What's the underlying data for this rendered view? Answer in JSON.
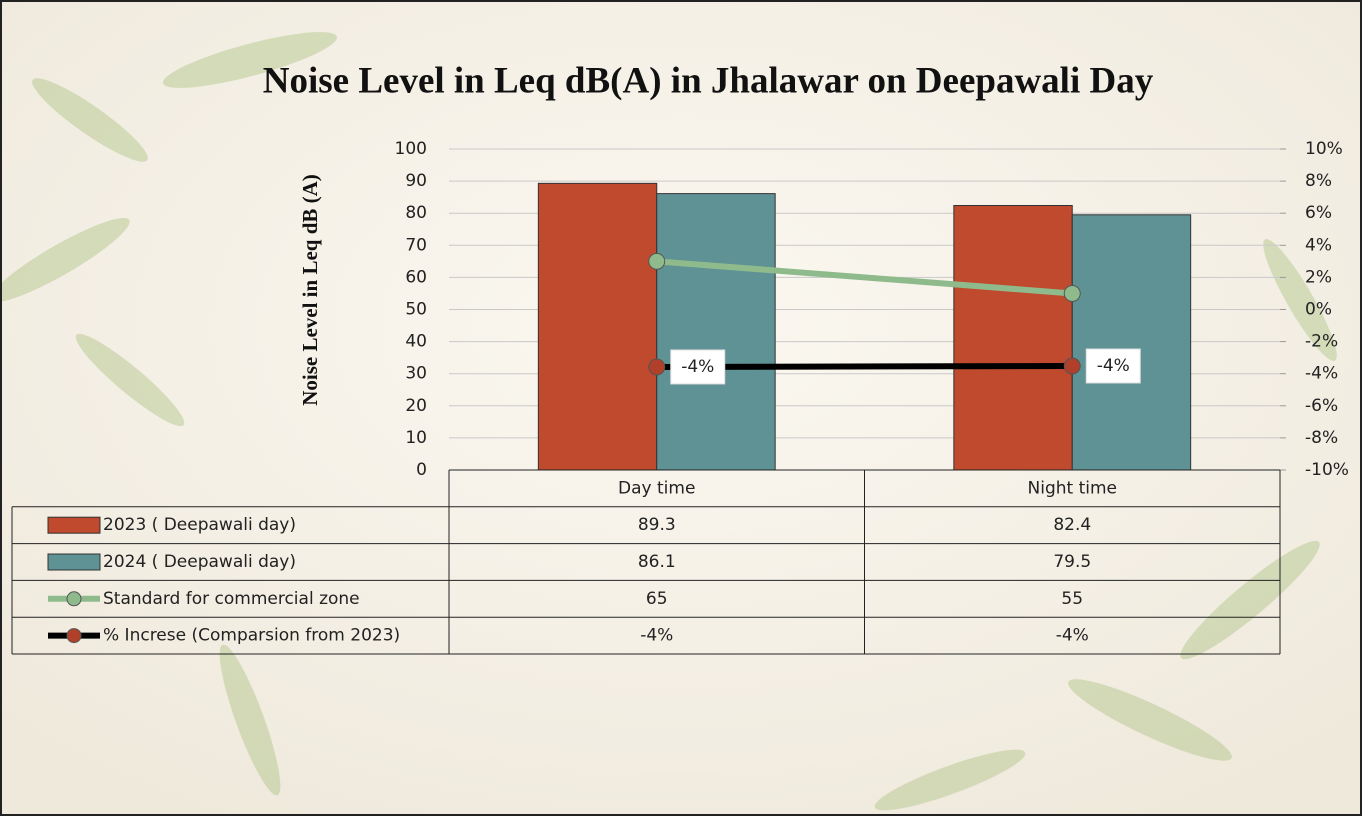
{
  "chart_data": {
    "type": "bar",
    "title": "Noise Level in Leq dB(A) in Jhalawar on Deepawali Day",
    "y_label": "Noise Level in Leq dB (A)",
    "categories": [
      "Day time",
      "Night time"
    ],
    "series": [
      {
        "name": "2023 ( Deepawali day)",
        "type": "bar",
        "color": "#bf4a2e",
        "values": [
          89.3,
          82.4
        ]
      },
      {
        "name": "2024 ( Deepawali day)",
        "type": "bar",
        "color": "#5e9294",
        "values": [
          86.1,
          79.5
        ]
      },
      {
        "name": "Standard for commercial zone",
        "type": "line",
        "color": "#8fbb8c",
        "values": [
          65,
          55
        ]
      },
      {
        "name": "% Increse (Comparsion from 2023)",
        "type": "line",
        "axis": "y2",
        "color": "#000000",
        "marker_color": "#b0402a",
        "values": [
          -3.58,
          -3.52
        ],
        "value_labels": [
          "-4%",
          "-4%"
        ]
      }
    ],
    "ylim": [
      0,
      100
    ],
    "yticks": [
      0,
      10,
      20,
      30,
      40,
      50,
      60,
      70,
      80,
      90,
      100
    ],
    "y2lim": [
      -10,
      10
    ],
    "y2ticks": [
      {
        "value": -10,
        "label": "-10%"
      },
      {
        "value": -8,
        "label": "-8%"
      },
      {
        "value": -6,
        "label": "-6%"
      },
      {
        "value": -4,
        "label": "-4%"
      },
      {
        "value": -2,
        "label": "-2%"
      },
      {
        "value": 0,
        "label": "0%"
      },
      {
        "value": 2,
        "label": "2%"
      },
      {
        "value": 4,
        "label": "4%"
      },
      {
        "value": 6,
        "label": "6%"
      },
      {
        "value": 8,
        "label": "8%"
      },
      {
        "value": 10,
        "label": "10%"
      }
    ],
    "grid": true,
    "data_table": true
  }
}
